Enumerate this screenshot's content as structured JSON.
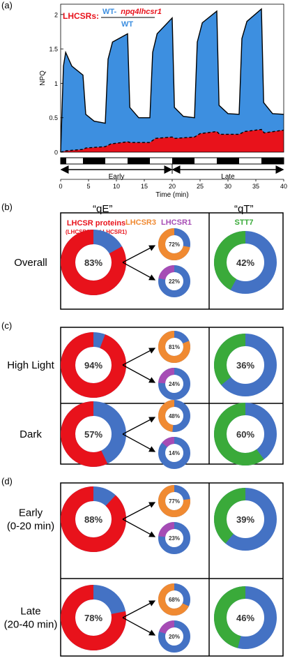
{
  "panel_labels": {
    "a": "(a)",
    "b": "(b)",
    "c": "(c)",
    "d": "(d)"
  },
  "chart_data": {
    "type": "area",
    "title": "",
    "xlabel": "Time (min)",
    "ylabel": "NPQ",
    "xlim": [
      0,
      40
    ],
    "ylim": [
      0,
      2.15
    ],
    "xticks": [
      0,
      5,
      10,
      15,
      20,
      25,
      30,
      35,
      40
    ],
    "yticks": [
      0,
      0.5,
      1,
      1.5,
      2
    ],
    "grid": false,
    "legend": {
      "prefix": "LHCSRs:",
      "numerator_a": "WT-",
      "numerator_b": "npq4lhcsr1",
      "denominator": "WT"
    },
    "light_bar": {
      "segments": [
        [
          0,
          1,
          "dark"
        ],
        [
          1,
          4,
          "light"
        ],
        [
          4,
          8,
          "dark"
        ],
        [
          8,
          12,
          "light"
        ],
        [
          12,
          16,
          "dark"
        ],
        [
          16,
          20,
          "light"
        ],
        [
          20,
          24,
          "dark"
        ],
        [
          24,
          28,
          "light"
        ],
        [
          28,
          32,
          "dark"
        ],
        [
          32,
          36,
          "light"
        ],
        [
          36,
          40,
          "dark"
        ]
      ]
    },
    "phases": [
      {
        "label": "Early",
        "start": 0,
        "end": 20
      },
      {
        "label": "Late",
        "start": 20,
        "end": 40
      }
    ],
    "series": [
      {
        "name": "WT",
        "x": [
          0,
          0.5,
          0.9,
          2,
          4,
          4.5,
          6,
          8,
          8.5,
          9.3,
          12,
          12.4,
          14,
          16,
          16.5,
          17.3,
          20,
          20.4,
          22,
          24,
          24.5,
          25.4,
          28,
          28.4,
          30,
          32,
          32.5,
          33.4,
          36,
          36.4,
          38,
          40
        ],
        "y": [
          0,
          1.25,
          1.45,
          1.25,
          1.12,
          0.55,
          0.45,
          0.42,
          1.35,
          1.6,
          1.72,
          0.65,
          0.5,
          0.5,
          1.45,
          1.72,
          1.95,
          0.65,
          0.52,
          0.5,
          1.6,
          1.88,
          2.05,
          0.68,
          0.56,
          0.55,
          1.65,
          1.9,
          2.08,
          0.72,
          0.56,
          0.55
        ],
        "color": "#3d8fe0"
      },
      {
        "name": "LHCSRs",
        "x": [
          0,
          1,
          4,
          4.5,
          8,
          9,
          12,
          12.5,
          16,
          17,
          20,
          20.5,
          24,
          25,
          28,
          28.5,
          32,
          33,
          36,
          36.5,
          40
        ],
        "y": [
          0,
          0.02,
          0.04,
          0.06,
          0.08,
          0.12,
          0.15,
          0.14,
          0.14,
          0.2,
          0.22,
          0.2,
          0.22,
          0.27,
          0.3,
          0.26,
          0.26,
          0.3,
          0.33,
          0.28,
          0.32
        ],
        "color": "#e8121b"
      }
    ]
  },
  "columns": {
    "qE": "“qE”",
    "qT": "“qT”"
  },
  "headers": {
    "lhcsr": "LHCSR proteins",
    "lhcsr_sub": "(LHCSR3 and LHCSR1)",
    "lhcsr3": "LHCSR3",
    "lhcsr1": "LHCSR1",
    "stt7": "STT7"
  },
  "colors": {
    "lhcsr": "#e8121b",
    "lhcsr3": "#f08a32",
    "lhcsr1": "#a64cb5",
    "stt7": "#3aaa3a",
    "rest": "#4472c4"
  },
  "rows": [
    {
      "label": [
        "Overall"
      ],
      "lhcsr": 83,
      "lhcsr3": 72,
      "lhcsr1": 22,
      "stt7": 42
    },
    {
      "label": [
        "High Light"
      ],
      "lhcsr": 94,
      "lhcsr3": 81,
      "lhcsr1": 24,
      "stt7": 36
    },
    {
      "label": [
        "Dark"
      ],
      "lhcsr": 57,
      "lhcsr3": 48,
      "lhcsr1": 14,
      "stt7": 60
    },
    {
      "label": [
        "Early",
        "(0-20 min)"
      ],
      "lhcsr": 88,
      "lhcsr3": 77,
      "lhcsr1": 23,
      "stt7": 39
    },
    {
      "label": [
        "Late",
        "(20-40 min)"
      ],
      "lhcsr": 78,
      "lhcsr3": 68,
      "lhcsr1": 20,
      "stt7": 46
    }
  ]
}
